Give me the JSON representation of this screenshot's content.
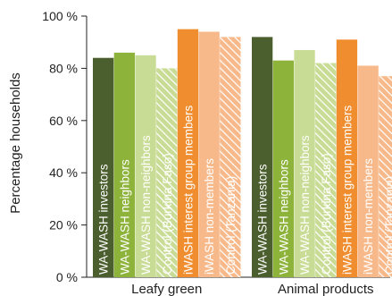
{
  "chart_data": {
    "type": "bar",
    "ylabel": "Percentage households",
    "ylim": [
      0,
      100
    ],
    "yticks": [
      0,
      20,
      40,
      60,
      80,
      100
    ],
    "ytick_suffix": "%",
    "grid": false,
    "categories": [
      "Leafy green",
      "Animal products"
    ],
    "series": [
      {
        "name": "WA-WASH investors",
        "color": "#4b5e2e",
        "hatch": false,
        "values": [
          84,
          92
        ]
      },
      {
        "name": "WA-WASH neighbors",
        "color": "#8db33a",
        "hatch": false,
        "values": [
          86,
          83
        ]
      },
      {
        "name": "WA-WASH non-neighbors",
        "color": "#c9dc95",
        "hatch": false,
        "values": [
          85,
          87
        ]
      },
      {
        "name": "Control (Burkina Faso)",
        "color": "#c9dc95",
        "hatch": true,
        "values": [
          80,
          82
        ]
      },
      {
        "name": "iWASH interest group members",
        "color": "#f08d2e",
        "hatch": false,
        "values": [
          95,
          91
        ]
      },
      {
        "name": "iWASH non-members",
        "color": "#f7b98a",
        "hatch": false,
        "values": [
          94,
          81
        ]
      },
      {
        "name": "Control (Tanzania)",
        "color": "#f7b98a",
        "hatch": true,
        "values": [
          92,
          77
        ]
      }
    ]
  }
}
